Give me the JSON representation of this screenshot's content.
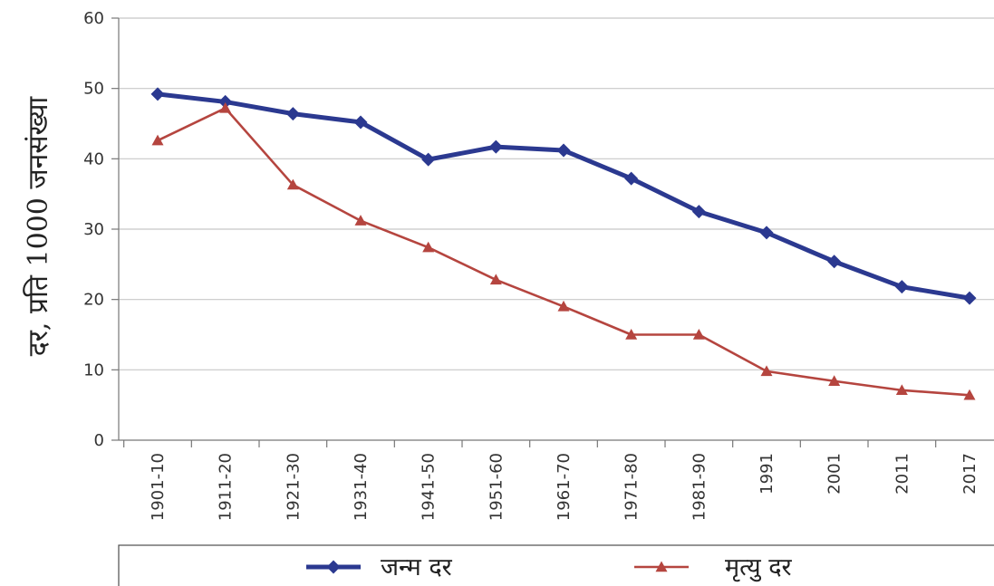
{
  "chart_data": {
    "type": "line",
    "title": "",
    "xlabel": "",
    "ylabel": "दर, प्रति 1000 जनसंख्या",
    "categories": [
      "1901-10",
      "1911-20",
      "1921-30",
      "1931-40",
      "1941-50",
      "1951-60",
      "1961-70",
      "1971-80",
      "1981-90",
      "1991",
      "2001",
      "2011",
      "2017"
    ],
    "ylim": [
      0,
      60
    ],
    "yticks": [
      "0",
      "10",
      "20",
      "30",
      "40",
      "50",
      "60"
    ],
    "grid": true,
    "legend_position": "bottom",
    "series": [
      {
        "name": "जन्म दर",
        "color": "#2B3990",
        "marker": "diamond",
        "values": [
          49.2,
          48.1,
          46.4,
          45.2,
          39.9,
          41.7,
          41.2,
          37.2,
          32.5,
          29.5,
          25.4,
          21.8,
          20.2
        ]
      },
      {
        "name": "मृत्यु दर",
        "color": "#B5453F",
        "marker": "triangle",
        "values": [
          42.6,
          47.2,
          36.3,
          31.2,
          27.4,
          22.8,
          19.0,
          15.0,
          15.0,
          9.8,
          8.4,
          7.1,
          6.4
        ]
      }
    ]
  }
}
